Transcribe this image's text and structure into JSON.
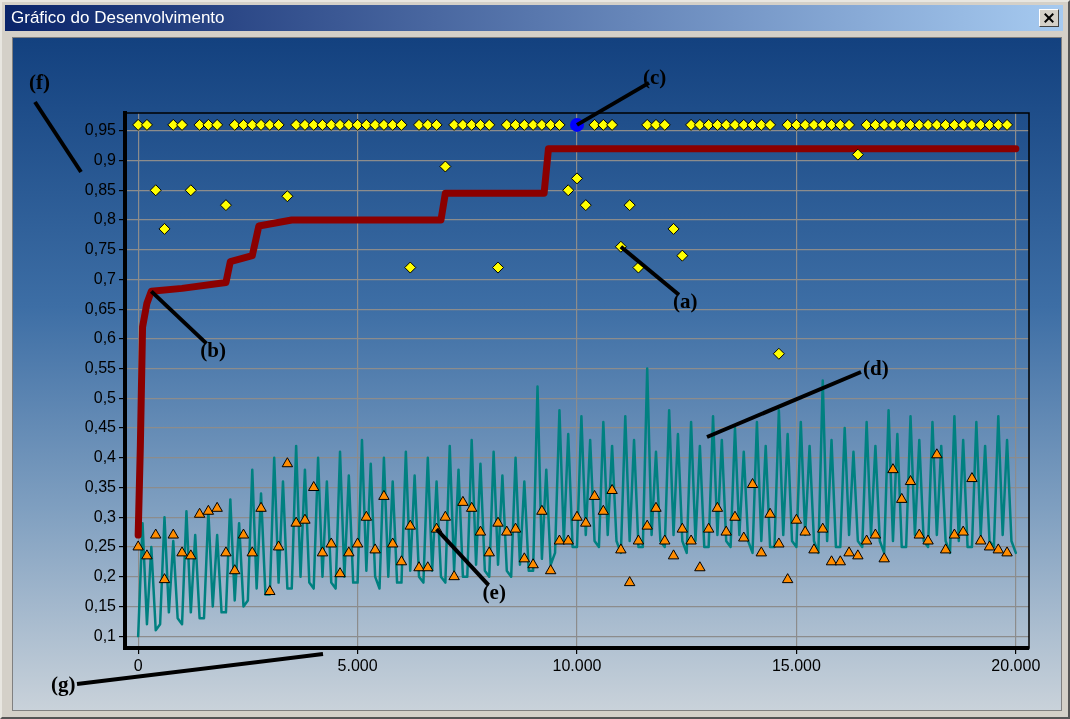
{
  "chart_data": {
    "type": "scatter",
    "title": "Gráfico do Desenvolvimento",
    "xlim": [
      -300,
      20300
    ],
    "ylim": [
      0.08,
      0.98
    ],
    "xticks": [
      0,
      {
        "value": 5000,
        "label": "5.000"
      },
      {
        "value": 10000,
        "label": "10.000"
      },
      {
        "value": 15000,
        "label": "15.000"
      },
      {
        "value": 20000,
        "label": "20.000"
      }
    ],
    "yticks": [
      {
        "value": 0.1,
        "label": "0,1"
      },
      {
        "value": 0.15,
        "label": "0,15"
      },
      {
        "value": 0.2,
        "label": "0,2"
      },
      {
        "value": 0.25,
        "label": "0,25"
      },
      {
        "value": 0.3,
        "label": "0,3"
      },
      {
        "value": 0.35,
        "label": "0,35"
      },
      {
        "value": 0.4,
        "label": "0,4"
      },
      {
        "value": 0.45,
        "label": "0,45"
      },
      {
        "value": 0.5,
        "label": "0,5"
      },
      {
        "value": 0.55,
        "label": "0,55"
      },
      {
        "value": 0.6,
        "label": "0,6"
      },
      {
        "value": 0.65,
        "label": "0,65"
      },
      {
        "value": 0.7,
        "label": "0,7"
      },
      {
        "value": 0.75,
        "label": "0,75"
      },
      {
        "value": 0.8,
        "label": "0,8"
      },
      {
        "value": 0.85,
        "label": "0,85"
      },
      {
        "value": 0.9,
        "label": "0,9"
      },
      {
        "value": 0.95,
        "label": "0,95"
      }
    ],
    "grid": true,
    "series": [
      {
        "type": "line",
        "color": "#008080",
        "marker": "none",
        "x": [
          0,
          100,
          200,
          300,
          400,
          500,
          600,
          700,
          800,
          900,
          1000,
          1100,
          1200,
          1300,
          1400,
          1500,
          1600,
          1700,
          1800,
          1900,
          2000,
          2100,
          2200,
          2300,
          2400,
          2500,
          2600,
          2700,
          2800,
          2900,
          3000,
          3100,
          3200,
          3300,
          3400,
          3500,
          3600,
          3700,
          3800,
          3900,
          4000,
          4100,
          4200,
          4300,
          4400,
          4500,
          4600,
          4700,
          4800,
          4900,
          5000,
          5100,
          5200,
          5300,
          5400,
          5500,
          5600,
          5700,
          5800,
          5900,
          6000,
          6100,
          6200,
          6300,
          6400,
          6500,
          6600,
          6700,
          6800,
          6900,
          7000,
          7100,
          7200,
          7300,
          7400,
          7500,
          7600,
          7700,
          7800,
          7900,
          8000,
          8100,
          8200,
          8300,
          8400,
          8500,
          8600,
          8700,
          8800,
          8900,
          9000,
          9100,
          9200,
          9300,
          9400,
          9500,
          9600,
          9700,
          9800,
          9900,
          10000,
          10100,
          10200,
          10300,
          10400,
          10500,
          10600,
          10700,
          10800,
          10900,
          11000,
          11100,
          11200,
          11300,
          11400,
          11500,
          11600,
          11700,
          11800,
          11900,
          12000,
          12100,
          12200,
          12300,
          12400,
          12500,
          12600,
          12700,
          12800,
          12900,
          13000,
          13100,
          13200,
          13300,
          13400,
          13500,
          13600,
          13700,
          13800,
          13900,
          14000,
          14100,
          14200,
          14300,
          14400,
          14500,
          14600,
          14700,
          14800,
          14900,
          15000,
          15100,
          15200,
          15300,
          15400,
          15500,
          15600,
          15700,
          15800,
          15900,
          16000,
          16100,
          16200,
          16300,
          16400,
          16500,
          16600,
          16700,
          16800,
          16900,
          17000,
          17100,
          17200,
          17300,
          17400,
          17500,
          17600,
          17700,
          17800,
          17900,
          18000,
          18100,
          18200,
          18300,
          18400,
          18500,
          18600,
          18700,
          18800,
          18900,
          19000,
          19100,
          19200,
          19300,
          19400,
          19500,
          19600,
          19700,
          19800,
          19900,
          20000
        ],
        "values": [
          0.1,
          0.29,
          0.12,
          0.25,
          0.11,
          0.12,
          0.3,
          0.14,
          0.26,
          0.13,
          0.12,
          0.31,
          0.14,
          0.27,
          0.13,
          0.13,
          0.31,
          0.15,
          0.27,
          0.14,
          0.14,
          0.33,
          0.16,
          0.29,
          0.15,
          0.16,
          0.38,
          0.18,
          0.34,
          0.17,
          0.17,
          0.4,
          0.19,
          0.36,
          0.18,
          0.18,
          0.42,
          0.2,
          0.38,
          0.19,
          0.18,
          0.4,
          0.2,
          0.36,
          0.19,
          0.18,
          0.41,
          0.2,
          0.37,
          0.19,
          0.19,
          0.43,
          0.21,
          0.39,
          0.2,
          0.18,
          0.4,
          0.2,
          0.36,
          0.19,
          0.19,
          0.41,
          0.21,
          0.37,
          0.2,
          0.19,
          0.4,
          0.21,
          0.36,
          0.2,
          0.19,
          0.42,
          0.21,
          0.38,
          0.2,
          0.2,
          0.43,
          0.22,
          0.39,
          0.21,
          0.2,
          0.41,
          0.22,
          0.37,
          0.21,
          0.2,
          0.4,
          0.22,
          0.36,
          0.21,
          0.21,
          0.52,
          0.23,
          0.38,
          0.22,
          0.24,
          0.48,
          0.26,
          0.44,
          0.25,
          0.25,
          0.47,
          0.27,
          0.43,
          0.26,
          0.25,
          0.46,
          0.27,
          0.42,
          0.26,
          0.24,
          0.47,
          0.26,
          0.43,
          0.25,
          0.25,
          0.55,
          0.27,
          0.41,
          0.26,
          0.25,
          0.48,
          0.27,
          0.44,
          0.26,
          0.24,
          0.46,
          0.26,
          0.42,
          0.25,
          0.25,
          0.47,
          0.27,
          0.43,
          0.26,
          0.25,
          0.45,
          0.27,
          0.41,
          0.26,
          0.24,
          0.46,
          0.26,
          0.42,
          0.25,
          0.25,
          0.48,
          0.27,
          0.44,
          0.26,
          0.25,
          0.46,
          0.27,
          0.42,
          0.26,
          0.24,
          0.53,
          0.26,
          0.43,
          0.25,
          0.25,
          0.45,
          0.27,
          0.41,
          0.26,
          0.25,
          0.46,
          0.27,
          0.42,
          0.26,
          0.24,
          0.48,
          0.26,
          0.44,
          0.25,
          0.25,
          0.47,
          0.27,
          0.43,
          0.26,
          0.25,
          0.46,
          0.27,
          0.42,
          0.26,
          0.24,
          0.47,
          0.26,
          0.43,
          0.25,
          0.25,
          0.46,
          0.27,
          0.42,
          0.26,
          0.25,
          0.47,
          0.27,
          0.43,
          0.26,
          0.24
        ]
      },
      {
        "type": "line",
        "color": "#8b0000",
        "marker": "none",
        "x": [
          0,
          50,
          100,
          200,
          300,
          1000,
          2000,
          2100,
          2600,
          2750,
          3500,
          5000,
          6900,
          7000,
          8000,
          9250,
          9350,
          12000,
          15000,
          20000
        ],
        "values": [
          0.27,
          0.42,
          0.62,
          0.66,
          0.68,
          0.685,
          0.695,
          0.73,
          0.74,
          0.79,
          0.8,
          0.8,
          0.8,
          0.845,
          0.845,
          0.845,
          0.92,
          0.92,
          0.92,
          0.92
        ]
      },
      {
        "type": "scatter",
        "color": "#ff8c00",
        "marker": "triangle",
        "x": [
          0,
          200,
          400,
          600,
          800,
          1000,
          1200,
          1400,
          1600,
          1800,
          2000,
          2200,
          2400,
          2600,
          2800,
          3000,
          3200,
          3400,
          3600,
          3800,
          4000,
          4200,
          4400,
          4600,
          4800,
          5000,
          5200,
          5400,
          5600,
          5800,
          6000,
          6200,
          6400,
          6600,
          6800,
          7000,
          7200,
          7400,
          7600,
          7800,
          8000,
          8200,
          8400,
          8600,
          8800,
          9000,
          9200,
          9400,
          9600,
          9800,
          10000,
          10200,
          10400,
          10600,
          10800,
          11000,
          11200,
          11400,
          11600,
          11800,
          12000,
          12200,
          12400,
          12600,
          12800,
          13000,
          13200,
          13400,
          13600,
          13800,
          14000,
          14200,
          14400,
          14600,
          14800,
          15000,
          15200,
          15400,
          15600,
          15800,
          16000,
          16200,
          16400,
          16600,
          16800,
          17000,
          17200,
          17400,
          17600,
          17800,
          18000,
          18200,
          18400,
          18600,
          18800,
          19000,
          19200,
          19400,
          19600,
          19800
        ],
        "values": [
          0.25,
          0.235,
          0.27,
          0.195,
          0.27,
          0.24,
          0.235,
          0.305,
          0.31,
          0.315,
          0.24,
          0.21,
          0.27,
          0.24,
          0.315,
          0.175,
          0.25,
          0.39,
          0.29,
          0.295,
          0.35,
          0.24,
          0.255,
          0.205,
          0.24,
          0.255,
          0.3,
          0.245,
          0.335,
          0.255,
          0.225,
          0.285,
          0.215,
          0.215,
          0.28,
          0.3,
          0.2,
          0.325,
          0.315,
          0.275,
          0.24,
          0.29,
          0.275,
          0.28,
          0.23,
          0.22,
          0.31,
          0.21,
          0.26,
          0.26,
          0.3,
          0.29,
          0.335,
          0.31,
          0.345,
          0.245,
          0.19,
          0.26,
          0.285,
          0.315,
          0.26,
          0.235,
          0.28,
          0.26,
          0.215,
          0.28,
          0.315,
          0.275,
          0.3,
          0.265,
          0.355,
          0.24,
          0.305,
          0.255,
          0.195,
          0.295,
          0.275,
          0.245,
          0.28,
          0.225,
          0.225,
          0.24,
          0.235,
          0.26,
          0.27,
          0.23,
          0.38,
          0.33,
          0.36,
          0.27,
          0.26,
          0.405,
          0.245,
          0.27,
          0.275,
          0.365,
          0.26,
          0.25,
          0.245,
          0.24
        ]
      },
      {
        "type": "scatter",
        "color": "#ffff00",
        "marker": "diamond",
        "x": [
          0,
          200,
          400,
          600,
          800,
          1000,
          1200,
          1400,
          1600,
          1800,
          2000,
          2200,
          2400,
          2600,
          2800,
          3000,
          3200,
          3400,
          3600,
          3800,
          4000,
          4200,
          4400,
          4600,
          4800,
          5000,
          5200,
          5400,
          5600,
          5800,
          6000,
          6200,
          6400,
          6600,
          6800,
          7000,
          7200,
          7400,
          7600,
          7800,
          8000,
          8200,
          8400,
          8600,
          8800,
          9000,
          9200,
          9400,
          9600,
          9800,
          10000,
          10200,
          10400,
          10600,
          10800,
          11000,
          11200,
          11400,
          11600,
          11800,
          12000,
          12200,
          12400,
          12600,
          12800,
          13000,
          13200,
          13400,
          13600,
          13800,
          14000,
          14200,
          14400,
          14600,
          14800,
          15000,
          15200,
          15400,
          15600,
          15800,
          16000,
          16200,
          16400,
          16600,
          16800,
          17000,
          17200,
          17400,
          17600,
          17800,
          18000,
          18200,
          18400,
          18600,
          18800,
          19000,
          19200,
          19400,
          19600,
          19800
        ],
        "values": [
          0.96,
          0.96,
          0.85,
          0.785,
          0.96,
          0.96,
          0.85,
          0.96,
          0.96,
          0.96,
          0.825,
          0.96,
          0.96,
          0.96,
          0.96,
          0.96,
          0.96,
          0.84,
          0.96,
          0.96,
          0.96,
          0.96,
          0.96,
          0.96,
          0.96,
          0.96,
          0.96,
          0.96,
          0.96,
          0.96,
          0.96,
          0.72,
          0.96,
          0.96,
          0.96,
          0.89,
          0.96,
          0.96,
          0.96,
          0.96,
          0.96,
          0.72,
          0.96,
          0.96,
          0.96,
          0.96,
          0.96,
          0.96,
          0.96,
          0.85,
          0.87,
          0.825,
          0.96,
          0.96,
          0.96,
          0.755,
          0.825,
          0.72,
          0.96,
          0.96,
          0.96,
          0.785,
          0.74,
          0.96,
          0.96,
          0.96,
          0.96,
          0.96,
          0.96,
          0.96,
          0.96,
          0.96,
          0.96,
          0.575,
          0.96,
          0.96,
          0.96,
          0.96,
          0.96,
          0.96,
          0.96,
          0.96,
          0.91,
          0.96,
          0.96,
          0.96,
          0.96,
          0.96,
          0.96,
          0.96,
          0.96,
          0.96,
          0.96,
          0.96,
          0.96,
          0.96,
          0.96,
          0.96,
          0.96,
          0.96
        ]
      },
      {
        "type": "scatter",
        "color": "#0000ff",
        "marker": "circle",
        "x": [
          10000
        ],
        "values": [
          0.96
        ]
      }
    ],
    "annotations": [
      {
        "text": "(a)",
        "x": 11000,
        "y": 0.755
      },
      {
        "text": "(b)",
        "x": 300,
        "y": 0.68
      },
      {
        "text": "(c)",
        "x": 10000,
        "y": 0.96
      },
      {
        "text": "(e)",
        "x": 6800,
        "y": 0.28
      },
      "(d)",
      "(f)",
      "(g)"
    ]
  }
}
